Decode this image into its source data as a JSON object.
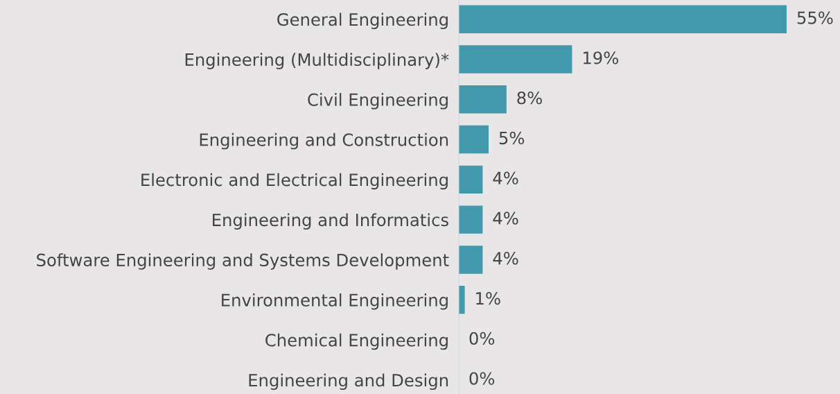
{
  "chart_data": {
    "type": "bar",
    "orientation": "horizontal",
    "categories": [
      "General Engineering",
      "Engineering (Multidisciplinary)*",
      "Civil Engineering",
      "Engineering and Construction",
      "Electronic and Electrical Engineering",
      "Engineering and Informatics",
      "Software Engineering and Systems Development",
      "Environmental Engineering",
      "Chemical Engineering",
      "Engineering and Design"
    ],
    "values": [
      55,
      19,
      8,
      5,
      4,
      4,
      4,
      1,
      0,
      0
    ],
    "value_labels": [
      "55%",
      "19%",
      "8%",
      "5%",
      "4%",
      "4%",
      "4%",
      "1%",
      "0%",
      "0%"
    ],
    "color": "#4299ab",
    "grid": false,
    "legend": false
  }
}
